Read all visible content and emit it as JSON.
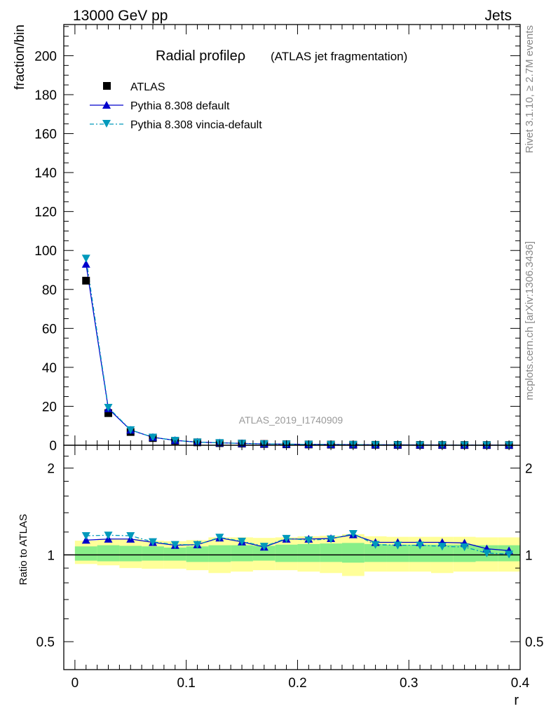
{
  "header": {
    "left": "13000 GeV pp",
    "right": "Jets"
  },
  "side_text": {
    "rivet": "Rivet 3.1.10, ≥ 2.7M events",
    "mcplots": "mcplots.cern.ch [arXiv:1306.3436]"
  },
  "chart_data": [
    {
      "type": "scatter",
      "title": "Radial profileρ",
      "subtitle": "(ATLAS jet fragmentation)",
      "ylabel": "fraction/bin",
      "xlabel": "",
      "watermark": "ATLAS_2019_I1740909",
      "xlim": [
        -0.01,
        0.4
      ],
      "ylim": [
        0,
        216
      ],
      "yticks": [
        0,
        20,
        40,
        60,
        80,
        100,
        120,
        140,
        160,
        180,
        200
      ],
      "legend": {
        "placement": "top-left",
        "entries": [
          "ATLAS",
          "Pythia 8.308 default",
          "Pythia 8.308 vincia-default"
        ]
      },
      "x": [
        0.01,
        0.03,
        0.05,
        0.07,
        0.09,
        0.11,
        0.13,
        0.15,
        0.17,
        0.19,
        0.21,
        0.23,
        0.25,
        0.27,
        0.29,
        0.31,
        0.33,
        0.35,
        0.37,
        0.39
      ],
      "series": [
        {
          "name": "ATLAS",
          "color": "#000000",
          "marker": "square",
          "values": [
            84.5,
            16.5,
            6.8,
            3.7,
            2.3,
            1.5,
            1.1,
            0.85,
            0.65,
            0.5,
            0.4,
            0.33,
            0.27,
            0.22,
            0.18,
            0.15,
            0.13,
            0.11,
            0.1,
            0.09
          ]
        },
        {
          "name": "Pythia 8.308 default",
          "color": "#0000cc",
          "marker": "triangle-up",
          "line": "solid",
          "values": [
            93.0,
            18.8,
            7.8,
            4.1,
            2.5,
            1.6,
            1.25,
            0.95,
            0.68,
            0.56,
            0.46,
            0.38,
            0.32,
            0.25,
            0.2,
            0.17,
            0.15,
            0.12,
            0.11,
            0.09
          ]
        },
        {
          "name": "Pythia 8.308 vincia-default",
          "color": "#0099bb",
          "marker": "triangle-down",
          "line": "dash-dot",
          "values": [
            96.0,
            19.4,
            7.9,
            4.1,
            2.5,
            1.6,
            1.25,
            0.95,
            0.68,
            0.56,
            0.45,
            0.37,
            0.32,
            0.24,
            0.19,
            0.16,
            0.14,
            0.11,
            0.1,
            0.09
          ]
        }
      ]
    },
    {
      "type": "scatter",
      "ylabel": "Ratio to ATLAS",
      "xlabel": "r",
      "xlim": [
        -0.01,
        0.4
      ],
      "ylim": [
        0.4,
        2.4
      ],
      "ylog": true,
      "yticks": [
        0.5,
        1,
        2
      ],
      "xticks": [
        0,
        0.1,
        0.2,
        0.3,
        0.4
      ],
      "reference": 1.0,
      "x": [
        0.01,
        0.03,
        0.05,
        0.07,
        0.09,
        0.11,
        0.13,
        0.15,
        0.17,
        0.19,
        0.21,
        0.23,
        0.25,
        0.27,
        0.29,
        0.31,
        0.33,
        0.35,
        0.37,
        0.39
      ],
      "bands": [
        {
          "name": "uncertainty-outer",
          "color": "#ffff99",
          "bins": [
            [
              0.0,
              0.02
            ],
            [
              0.02,
              0.04
            ],
            [
              0.04,
              0.06
            ],
            [
              0.06,
              0.08
            ],
            [
              0.08,
              0.1
            ],
            [
              0.1,
              0.12
            ],
            [
              0.12,
              0.14
            ],
            [
              0.14,
              0.16
            ],
            [
              0.16,
              0.18
            ],
            [
              0.18,
              0.2
            ],
            [
              0.2,
              0.22
            ],
            [
              0.22,
              0.24
            ],
            [
              0.24,
              0.26
            ],
            [
              0.26,
              0.28
            ],
            [
              0.28,
              0.3
            ],
            [
              0.3,
              0.32
            ],
            [
              0.32,
              0.34
            ],
            [
              0.34,
              0.36
            ],
            [
              0.36,
              0.38
            ],
            [
              0.38,
              0.4
            ]
          ],
          "low": [
            0.93,
            0.92,
            0.9,
            0.895,
            0.895,
            0.885,
            0.865,
            0.875,
            0.885,
            0.885,
            0.875,
            0.865,
            0.845,
            0.875,
            0.875,
            0.875,
            0.865,
            0.875,
            0.875,
            0.875
          ],
          "high": [
            1.12,
            1.135,
            1.135,
            1.12,
            1.115,
            1.125,
            1.15,
            1.15,
            1.145,
            1.15,
            1.16,
            1.165,
            1.18,
            1.16,
            1.155,
            1.155,
            1.155,
            1.155,
            1.15,
            1.15
          ]
        },
        {
          "name": "uncertainty-inner",
          "color": "#88ee88",
          "bins": [
            [
              0.0,
              0.02
            ],
            [
              0.02,
              0.04
            ],
            [
              0.04,
              0.06
            ],
            [
              0.06,
              0.08
            ],
            [
              0.08,
              0.1
            ],
            [
              0.1,
              0.12
            ],
            [
              0.12,
              0.14
            ],
            [
              0.14,
              0.16
            ],
            [
              0.16,
              0.18
            ],
            [
              0.18,
              0.2
            ],
            [
              0.2,
              0.22
            ],
            [
              0.22,
              0.24
            ],
            [
              0.24,
              0.26
            ],
            [
              0.26,
              0.28
            ],
            [
              0.28,
              0.3
            ],
            [
              0.3,
              0.32
            ],
            [
              0.32,
              0.34
            ],
            [
              0.34,
              0.36
            ],
            [
              0.36,
              0.38
            ],
            [
              0.38,
              0.4
            ]
          ],
          "low": [
            0.955,
            0.95,
            0.95,
            0.955,
            0.955,
            0.945,
            0.945,
            0.95,
            0.955,
            0.945,
            0.945,
            0.945,
            0.94,
            0.945,
            0.945,
            0.945,
            0.945,
            0.945,
            0.95,
            0.95
          ],
          "high": [
            1.07,
            1.08,
            1.075,
            1.07,
            1.06,
            1.07,
            1.08,
            1.08,
            1.075,
            1.085,
            1.09,
            1.095,
            1.1,
            1.09,
            1.085,
            1.085,
            1.085,
            1.085,
            1.08,
            1.08
          ]
        }
      ],
      "series": [
        {
          "name": "Pythia 8.308 default",
          "color": "#0000cc",
          "marker": "triangle-up",
          "line": "solid",
          "values": [
            1.125,
            1.135,
            1.135,
            1.105,
            1.08,
            1.085,
            1.145,
            1.11,
            1.065,
            1.135,
            1.135,
            1.14,
            1.175,
            1.105,
            1.105,
            1.105,
            1.105,
            1.1,
            1.05,
            1.035
          ]
        },
        {
          "name": "Pythia 8.308 vincia-default",
          "color": "#0099bb",
          "marker": "triangle-down",
          "line": "dash-dot",
          "values": [
            1.165,
            1.17,
            1.165,
            1.11,
            1.085,
            1.085,
            1.15,
            1.115,
            1.07,
            1.14,
            1.125,
            1.135,
            1.185,
            1.085,
            1.08,
            1.08,
            1.07,
            1.065,
            1.015,
            1.005
          ]
        }
      ]
    }
  ]
}
